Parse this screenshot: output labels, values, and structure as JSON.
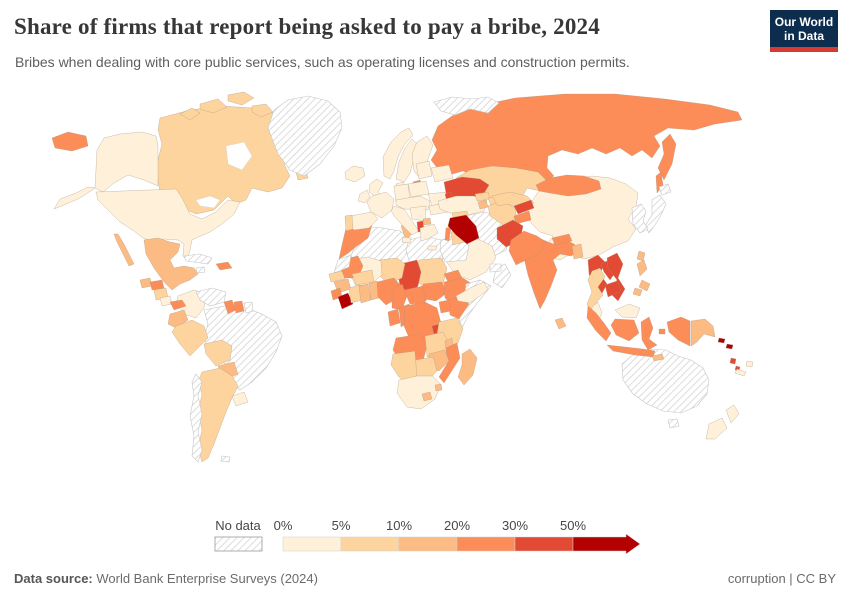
{
  "header": {
    "title": "Share of firms that report being asked to pay a bribe, 2024",
    "subtitle": "Bribes when dealing with core public services, such as operating licenses and construction permits."
  },
  "logo": {
    "line1": "Our World",
    "line2": "in Data",
    "bg_color": "#0d2d4e",
    "accent_color": "#d73a33"
  },
  "legend": {
    "no_data_label": "No data",
    "tick_labels": [
      "0%",
      "5%",
      "10%",
      "20%",
      "30%",
      "50%"
    ],
    "bucket_ranges": [
      "0-5%",
      "5-10%",
      "10-20%",
      "20-30%",
      "30-50%",
      "50%+"
    ],
    "bucket_colors": [
      "#fef0d9",
      "#fdd49e",
      "#fdbb84",
      "#fc8d59",
      "#e34a33",
      "#b30000"
    ]
  },
  "footer": {
    "source_label": "Data source:",
    "source_text": " World Bank Enterprise Surveys (2024)",
    "license_text": "corruption | CC BY"
  },
  "map": {
    "countries": [
      {
        "id": "russia",
        "name": "Russia",
        "b": 3
      },
      {
        "id": "canada",
        "name": "Canada",
        "b": 1
      },
      {
        "id": "usa",
        "name": "United States",
        "b": 0
      },
      {
        "id": "greenland",
        "name": "Greenland",
        "b": "nd"
      },
      {
        "id": "svalbard",
        "name": "Svalbard",
        "b": "nd"
      },
      {
        "id": "brazil",
        "name": "Brazil",
        "b": "nd"
      },
      {
        "id": "china",
        "name": "China",
        "b": 0
      },
      {
        "id": "australia",
        "name": "Australia",
        "b": "nd"
      },
      {
        "id": "mexico",
        "name": "Mexico",
        "b": 2
      },
      {
        "id": "kazakhstan",
        "name": "Kazakhstan",
        "b": 1
      },
      {
        "id": "mongolia",
        "name": "Mongolia",
        "b": 3
      },
      {
        "id": "india",
        "name": "India",
        "b": 3
      },
      {
        "id": "iran",
        "name": "Iran",
        "b": "nd"
      },
      {
        "id": "saudiarabia",
        "name": "Saudi Arabia",
        "b": 0
      },
      {
        "id": "algeria",
        "name": "Algeria",
        "b": "nd"
      },
      {
        "id": "libya",
        "name": "Libya",
        "b": "nd"
      },
      {
        "id": "egypt",
        "name": "Egypt",
        "b": "nd"
      },
      {
        "id": "sudan",
        "name": "Sudan",
        "b": 1
      },
      {
        "id": "chad",
        "name": "Chad",
        "b": 4
      },
      {
        "id": "niger",
        "name": "Niger",
        "b": 1
      },
      {
        "id": "mali",
        "name": "Mali",
        "b": 0
      },
      {
        "id": "mauritania",
        "name": "Mauritania",
        "b": 3
      },
      {
        "id": "morocco",
        "name": "Morocco",
        "b": 3
      },
      {
        "id": "wsahara",
        "name": "Western Sahara",
        "b": "nd"
      },
      {
        "id": "tunisia",
        "name": "Tunisia",
        "b": 2
      },
      {
        "id": "senegal",
        "name": "Senegal",
        "b": 1
      },
      {
        "id": "guinea",
        "name": "Guinea",
        "b": 2
      },
      {
        "id": "sierraleone",
        "name": "Sierra Leone",
        "b": 3
      },
      {
        "id": "liberia",
        "name": "Liberia",
        "b": 5
      },
      {
        "id": "ivorycoast",
        "name": "Cote d'Ivoire",
        "b": 1
      },
      {
        "id": "ghana",
        "name": "Ghana",
        "b": 2
      },
      {
        "id": "togobenin",
        "name": "Togo and Benin",
        "b": 2
      },
      {
        "id": "burkina",
        "name": "Burkina Faso",
        "b": 1
      },
      {
        "id": "nigeria",
        "name": "Nigeria",
        "b": 3
      },
      {
        "id": "cameroon",
        "name": "Cameroon",
        "b": 3
      },
      {
        "id": "car",
        "name": "Central African Republic",
        "b": 3
      },
      {
        "id": "ssudan",
        "name": "South Sudan",
        "b": 3
      },
      {
        "id": "eritrea",
        "name": "Eritrea",
        "b": 3
      },
      {
        "id": "ethiopia",
        "name": "Ethiopia",
        "b": 3
      },
      {
        "id": "somalia",
        "name": "Somalia",
        "b": "nd"
      },
      {
        "id": "uganda",
        "name": "Uganda",
        "b": 3
      },
      {
        "id": "kenya",
        "name": "Kenya",
        "b": 3
      },
      {
        "id": "gabon",
        "name": "Gabon",
        "b": 3
      },
      {
        "id": "congo",
        "name": "Congo",
        "b": 3
      },
      {
        "id": "drc",
        "name": "Democratic Republic of Congo",
        "b": 3
      },
      {
        "id": "burundi",
        "name": "Burundi",
        "b": 4
      },
      {
        "id": "tanzania",
        "name": "Tanzania",
        "b": 1
      },
      {
        "id": "angola",
        "name": "Angola",
        "b": 3
      },
      {
        "id": "zambia",
        "name": "Zambia",
        "b": 1
      },
      {
        "id": "malawi",
        "name": "Malawi",
        "b": 2
      },
      {
        "id": "mozambique",
        "name": "Mozambique",
        "b": 3
      },
      {
        "id": "zimbabwe",
        "name": "Zimbabwe",
        "b": 2
      },
      {
        "id": "botswana",
        "name": "Botswana",
        "b": 1
      },
      {
        "id": "namibia",
        "name": "Namibia",
        "b": 1
      },
      {
        "id": "southafrica",
        "name": "South Africa",
        "b": 0
      },
      {
        "id": "lesotho",
        "name": "Lesotho",
        "b": 2
      },
      {
        "id": "eswatini",
        "name": "Eswatini",
        "b": 2
      },
      {
        "id": "madagascar",
        "name": "Madagascar",
        "b": 2
      },
      {
        "id": "colombia",
        "name": "Colombia",
        "b": 0
      },
      {
        "id": "venezuela",
        "name": "Venezuela",
        "b": "nd"
      },
      {
        "id": "guyana",
        "name": "Guyana",
        "b": 3
      },
      {
        "id": "suriname",
        "name": "Suriname",
        "b": 3
      },
      {
        "id": "frguiana",
        "name": "French Guiana",
        "b": "nd"
      },
      {
        "id": "ecuador",
        "name": "Ecuador",
        "b": 2
      },
      {
        "id": "peru",
        "name": "Peru",
        "b": 1
      },
      {
        "id": "bolivia",
        "name": "Bolivia",
        "b": 1
      },
      {
        "id": "paraguay",
        "name": "Paraguay",
        "b": 2
      },
      {
        "id": "argentina",
        "name": "Argentina",
        "b": 1
      },
      {
        "id": "chile",
        "name": "Chile",
        "b": "nd"
      },
      {
        "id": "uruguay",
        "name": "Uruguay",
        "b": 0
      },
      {
        "id": "falklands",
        "name": "Falkland Islands",
        "b": "nd"
      },
      {
        "id": "guatemala",
        "name": "Guatemala",
        "b": 2
      },
      {
        "id": "honduras",
        "name": "Honduras",
        "b": 3
      },
      {
        "id": "nicaragua",
        "name": "Nicaragua",
        "b": 1
      },
      {
        "id": "costarica",
        "name": "Costa Rica",
        "b": 0
      },
      {
        "id": "panama",
        "name": "Panama",
        "b": 3
      },
      {
        "id": "cuba",
        "name": "Cuba",
        "b": "nd"
      },
      {
        "id": "jamaica",
        "name": "Jamaica",
        "b": "nd"
      },
      {
        "id": "hispaniola",
        "name": "Haiti and Dominican Republic",
        "b": 3
      },
      {
        "id": "iceland",
        "name": "Iceland",
        "b": 0
      },
      {
        "id": "norway",
        "name": "Norway",
        "b": 0
      },
      {
        "id": "sweden",
        "name": "Sweden",
        "b": 0
      },
      {
        "id": "finland",
        "name": "Finland",
        "b": 0
      },
      {
        "id": "denmark",
        "name": "Denmark",
        "b": 0
      },
      {
        "id": "uk",
        "name": "United Kingdom",
        "b": 0
      },
      {
        "id": "ireland",
        "name": "Ireland",
        "b": 0
      },
      {
        "id": "baltics",
        "name": "Baltic states",
        "b": 0
      },
      {
        "id": "belarus",
        "name": "Belarus",
        "b": 0
      },
      {
        "id": "poland",
        "name": "Poland",
        "b": 0
      },
      {
        "id": "germany",
        "name": "Germany",
        "b": 0
      },
      {
        "id": "france",
        "name": "France",
        "b": 0
      },
      {
        "id": "spain",
        "name": "Spain",
        "b": 0
      },
      {
        "id": "portugal",
        "name": "Portugal",
        "b": 1
      },
      {
        "id": "italy",
        "name": "Italy",
        "b": 0
      },
      {
        "id": "centraleurope",
        "name": "Central Europe",
        "b": 0
      },
      {
        "id": "romania",
        "name": "Romania",
        "b": 0
      },
      {
        "id": "bulgaria",
        "name": "Bulgaria",
        "b": 0
      },
      {
        "id": "balkans",
        "name": "Western Balkans",
        "b": 0
      },
      {
        "id": "albania",
        "name": "Albania",
        "b": 4
      },
      {
        "id": "macedonia",
        "name": "North Macedonia",
        "b": 2
      },
      {
        "id": "greece",
        "name": "Greece",
        "b": 0
      },
      {
        "id": "ukraine",
        "name": "Ukraine",
        "b": 4
      },
      {
        "id": "moldova",
        "name": "Moldova",
        "b": 4
      },
      {
        "id": "turkey",
        "name": "Turkey",
        "b": 0
      },
      {
        "id": "georgia",
        "name": "Georgia",
        "b": 1
      },
      {
        "id": "armenia",
        "name": "Armenia",
        "b": 2
      },
      {
        "id": "azerbaijan",
        "name": "Azerbaijan",
        "b": 1
      },
      {
        "id": "syria",
        "name": "Syria",
        "b": 1
      },
      {
        "id": "westbank",
        "name": "West Bank and Gaza",
        "b": 3
      },
      {
        "id": "jordan",
        "name": "Jordan",
        "b": 1
      },
      {
        "id": "iraq",
        "name": "Iraq",
        "b": 5
      },
      {
        "id": "yemen",
        "name": "Yemen",
        "b": 0
      },
      {
        "id": "oman",
        "name": "Oman",
        "b": "nd"
      },
      {
        "id": "uae",
        "name": "United Arab Emirates",
        "b": "nd"
      },
      {
        "id": "turkmenistan",
        "name": "Turkmenistan",
        "b": 1
      },
      {
        "id": "uzbekistan",
        "name": "Uzbekistan",
        "b": 1
      },
      {
        "id": "kyrgyzstan",
        "name": "Kyrgyzstan",
        "b": 4
      },
      {
        "id": "tajikistan",
        "name": "Tajikistan",
        "b": 3
      },
      {
        "id": "afghanistan",
        "name": "Afghanistan",
        "b": 4
      },
      {
        "id": "pakistan",
        "name": "Pakistan",
        "b": 3
      },
      {
        "id": "nepal",
        "name": "Nepal",
        "b": 3
      },
      {
        "id": "bangladesh",
        "name": "Bangladesh",
        "b": 2
      },
      {
        "id": "srilanka",
        "name": "Sri Lanka",
        "b": 2
      },
      {
        "id": "myanmar",
        "name": "Myanmar",
        "b": 4
      },
      {
        "id": "thailand",
        "name": "Thailand",
        "b": 1
      },
      {
        "id": "laos",
        "name": "Laos",
        "b": 4
      },
      {
        "id": "vietnam",
        "name": "Vietnam",
        "b": 4
      },
      {
        "id": "cambodia",
        "name": "Cambodia",
        "b": 4
      },
      {
        "id": "malaysia",
        "name": "Malaysia",
        "b": 0
      },
      {
        "id": "indonesia",
        "name": "Indonesia",
        "b": 3
      },
      {
        "id": "timor",
        "name": "Timor-Leste",
        "b": 2
      },
      {
        "id": "philippines",
        "name": "Philippines",
        "b": 2
      },
      {
        "id": "taiwan",
        "name": "Taiwan",
        "b": 2
      },
      {
        "id": "japan",
        "name": "Japan",
        "b": "nd"
      },
      {
        "id": "korea",
        "name": "Korea",
        "b": "nd"
      },
      {
        "id": "png",
        "name": "Papua New Guinea",
        "b": 2
      },
      {
        "id": "solomon",
        "name": "Solomon Islands",
        "b": 5
      },
      {
        "id": "vanuatu",
        "name": "Vanuatu",
        "b": 4
      },
      {
        "id": "fiji",
        "name": "Fiji",
        "b": 0
      },
      {
        "id": "newcaledonia",
        "name": "New Caledonia",
        "b": 0
      },
      {
        "id": "newzealand",
        "name": "New Zealand",
        "b": 0
      }
    ]
  }
}
